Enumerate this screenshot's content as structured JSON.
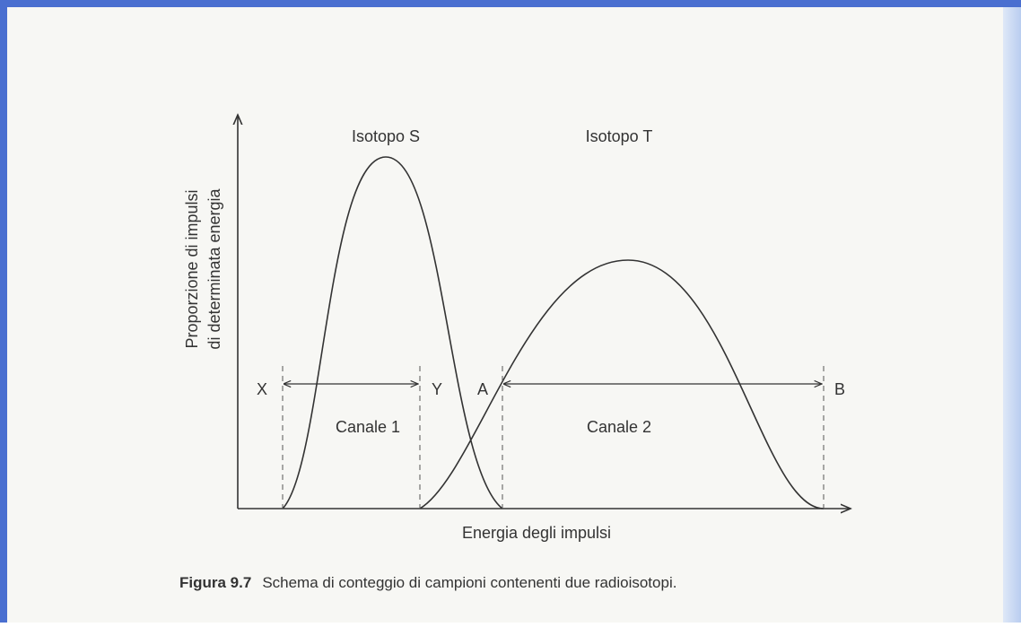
{
  "diagram": {
    "y_axis_label": [
      "Proporzione di impulsi",
      "di determinata energia"
    ],
    "x_axis_label": "Energia degli impulsi",
    "curves": [
      "Isotopo S",
      "Isotopo T"
    ],
    "points": [
      "X",
      "Y",
      "A",
      "B"
    ],
    "channels": [
      "Canale 1",
      "Canale 2"
    ]
  },
  "caption": {
    "number": "Figura 9.7",
    "text": "Schema di conteggio di campioni contenenti due radioisotopi."
  }
}
